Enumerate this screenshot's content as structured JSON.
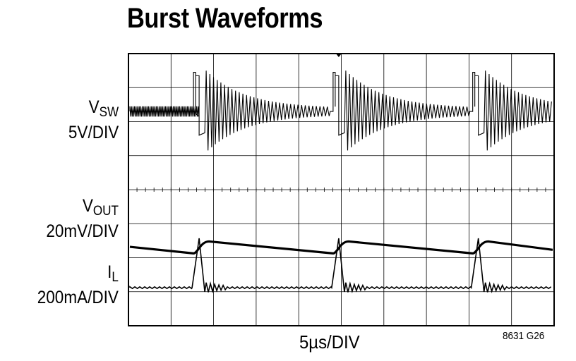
{
  "title": "Burst Waveforms",
  "channels": [
    {
      "name": "V",
      "sub": "SW",
      "scale": "5V/DIV"
    },
    {
      "name": "V",
      "sub": "OUT",
      "scale": "20mV/DIV"
    },
    {
      "name": "I",
      "sub": "L",
      "scale": "200mA/DIV"
    }
  ],
  "xlabel": "5µs/DIV",
  "figure_code": "8631 G26",
  "chart_data": {
    "type": "line",
    "title": "Burst Waveforms",
    "xlabel": "5µs/DIV",
    "x_divisions": 10,
    "y_divisions": 8,
    "grid": true,
    "x_range_us": [
      0,
      50
    ],
    "burst_times_us": [
      8.3,
      24.7,
      41.1
    ],
    "series": [
      {
        "name": "VSW",
        "scale": "5V/DIV",
        "description_values": {
          "idle_ringing_amplitude_div": 0.15,
          "burst_swing_div": 1.4
        }
      },
      {
        "name": "VOUT",
        "scale": "20mV/DIV",
        "description_values": {
          "ripple_pp_div": 0.35
        }
      },
      {
        "name": "IL",
        "scale": "200mA/DIV",
        "description_values": {
          "peak_div": 1.45
        }
      }
    ]
  }
}
